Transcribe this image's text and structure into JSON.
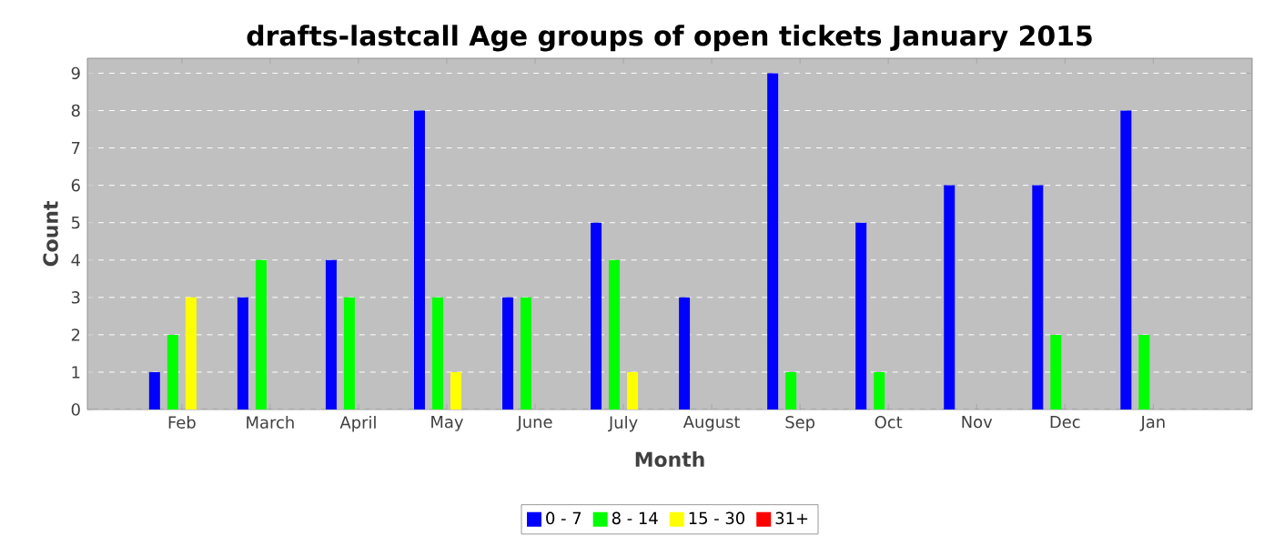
{
  "chart_data": {
    "type": "bar",
    "title": "drafts-lastcall Age groups of open tickets January 2015",
    "xlabel": "Month",
    "ylabel": "Count",
    "categories": [
      "Feb",
      "March",
      "April",
      "May",
      "June",
      "July",
      "August",
      "Sep",
      "Oct",
      "Nov",
      "Dec",
      "Jan"
    ],
    "series": [
      {
        "name": "0 - 7",
        "color": "#0000ff",
        "values": [
          1,
          3,
          4,
          8,
          3,
          5,
          3,
          9,
          5,
          6,
          6,
          8
        ]
      },
      {
        "name": "8 - 14",
        "color": "#00ff00",
        "values": [
          2,
          4,
          3,
          3,
          3,
          4,
          0,
          1,
          1,
          0,
          2,
          2
        ]
      },
      {
        "name": "15 - 30",
        "color": "#ffff00",
        "values": [
          3,
          0,
          0,
          1,
          0,
          1,
          0,
          0,
          0,
          0,
          0,
          0
        ]
      },
      {
        "name": "31+",
        "color": "#ff0000",
        "values": [
          0,
          0,
          0,
          0,
          0,
          0,
          0,
          0,
          0,
          0,
          0,
          0
        ]
      }
    ],
    "ylim": [
      0,
      9.4
    ],
    "yticks": [
      0,
      1,
      2,
      3,
      4,
      5,
      6,
      7,
      8,
      9
    ],
    "grid": "y",
    "legend": "bottom"
  }
}
